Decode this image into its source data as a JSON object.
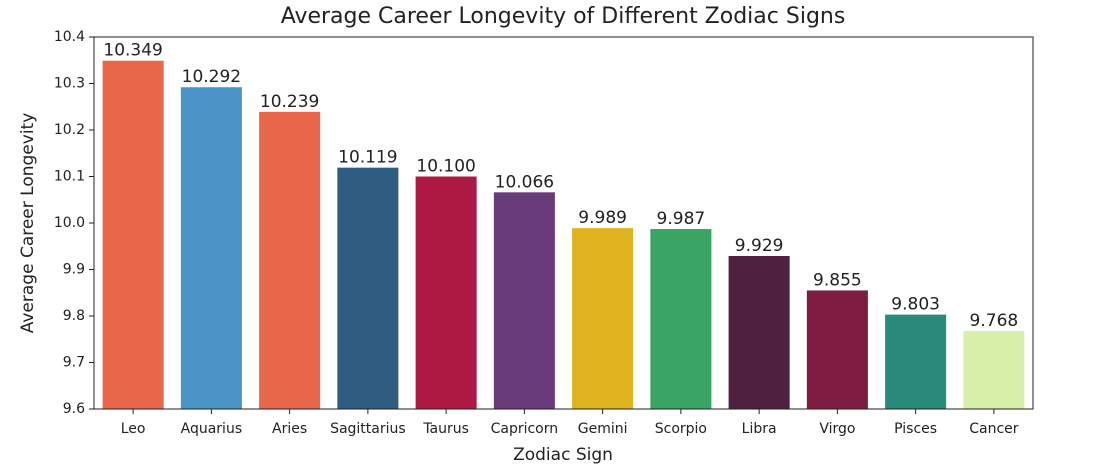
{
  "chart_data": {
    "type": "bar",
    "title": "Average Career Longevity of Different Zodiac Signs",
    "x_label": "Zodiac Sign",
    "y_label": "Average Career Longevity",
    "categories": [
      "Leo",
      "Aquarius",
      "Aries",
      "Sagittarius",
      "Taurus",
      "Capricorn",
      "Gemini",
      "Scorpio",
      "Libra",
      "Virgo",
      "Pisces",
      "Cancer"
    ],
    "values": [
      10.349,
      10.292,
      10.239,
      10.119,
      10.1,
      10.066,
      9.989,
      9.987,
      9.929,
      9.855,
      9.803,
      9.768
    ],
    "value_labels": [
      "10.349",
      "10.292",
      "10.239",
      "10.119",
      "10.100",
      "10.066",
      "9.989",
      "9.987",
      "9.929",
      "9.855",
      "9.803",
      "9.768"
    ],
    "colors": [
      "#e8664a",
      "#4a94c8",
      "#e8664a",
      "#2e5c80",
      "#ac1942",
      "#6a3b7b",
      "#e0b321",
      "#39a463",
      "#4e1f3e",
      "#7e1c41",
      "#2a8b7d",
      "#d8efa9"
    ],
    "ylim": [
      9.6,
      10.4
    ],
    "yticks": [
      9.6,
      9.7,
      9.8,
      9.9,
      {
        "value": 10,
        "label": "10.0"
      },
      10.1,
      10.2,
      10.3,
      10.4
    ],
    "grid": false
  }
}
